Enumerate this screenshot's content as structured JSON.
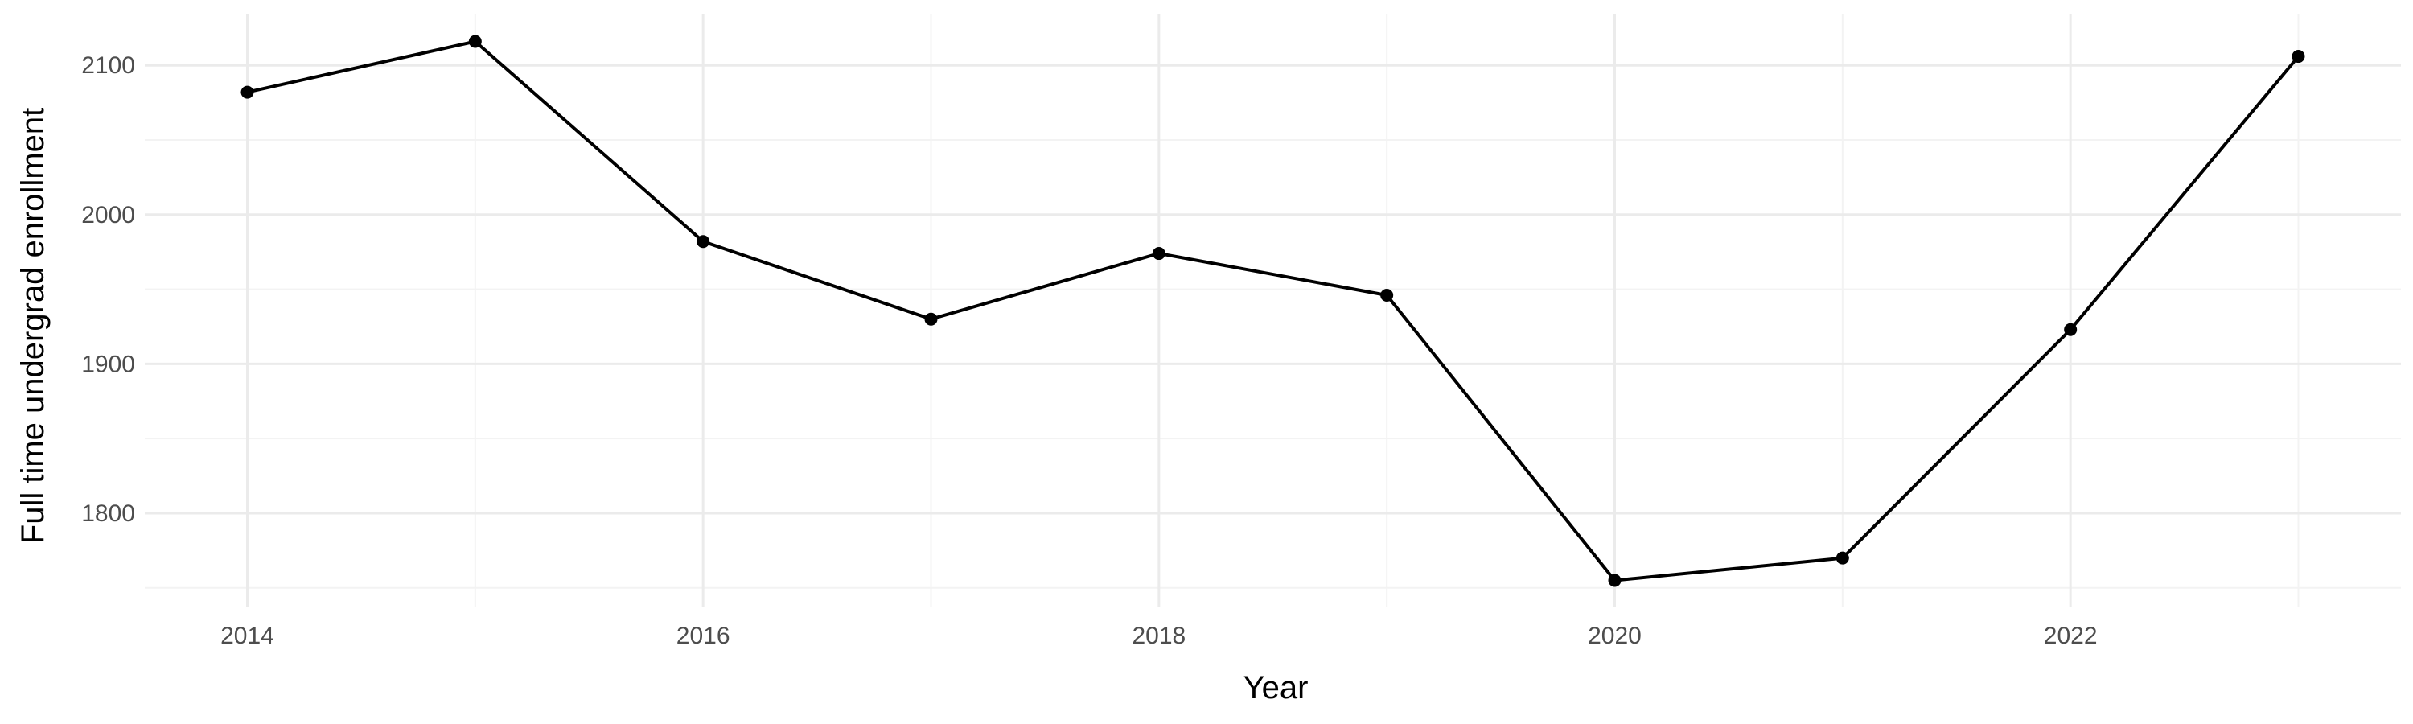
{
  "chart_data": {
    "type": "line",
    "title": "",
    "xlabel": "Year",
    "ylabel": "Full time undergrad enrollment",
    "x": [
      2014,
      2015,
      2016,
      2017,
      2018,
      2019,
      2020,
      2021,
      2022,
      2023
    ],
    "series": [
      {
        "values": [
          2082,
          2116,
          1982,
          1930,
          1974,
          1946,
          1755,
          1770,
          1923,
          2106
        ]
      }
    ],
    "x_ticks": [
      2014,
      2016,
      2018,
      2020,
      2022
    ],
    "x_tick_labels": [
      "2014",
      "2016",
      "2018",
      "2020",
      "2022"
    ],
    "y_ticks": [
      1800,
      1900,
      2000,
      2100
    ],
    "y_tick_labels": [
      "1800",
      "1900",
      "2000",
      "2100"
    ],
    "xlim": [
      2013.55,
      2023.45
    ],
    "ylim": [
      1736.95,
      2134.05
    ],
    "grid": true,
    "legend": "none",
    "colors": {
      "line": "#000000",
      "point": "#000000",
      "grid": "#ebebeb",
      "background": "#ffffff"
    }
  }
}
